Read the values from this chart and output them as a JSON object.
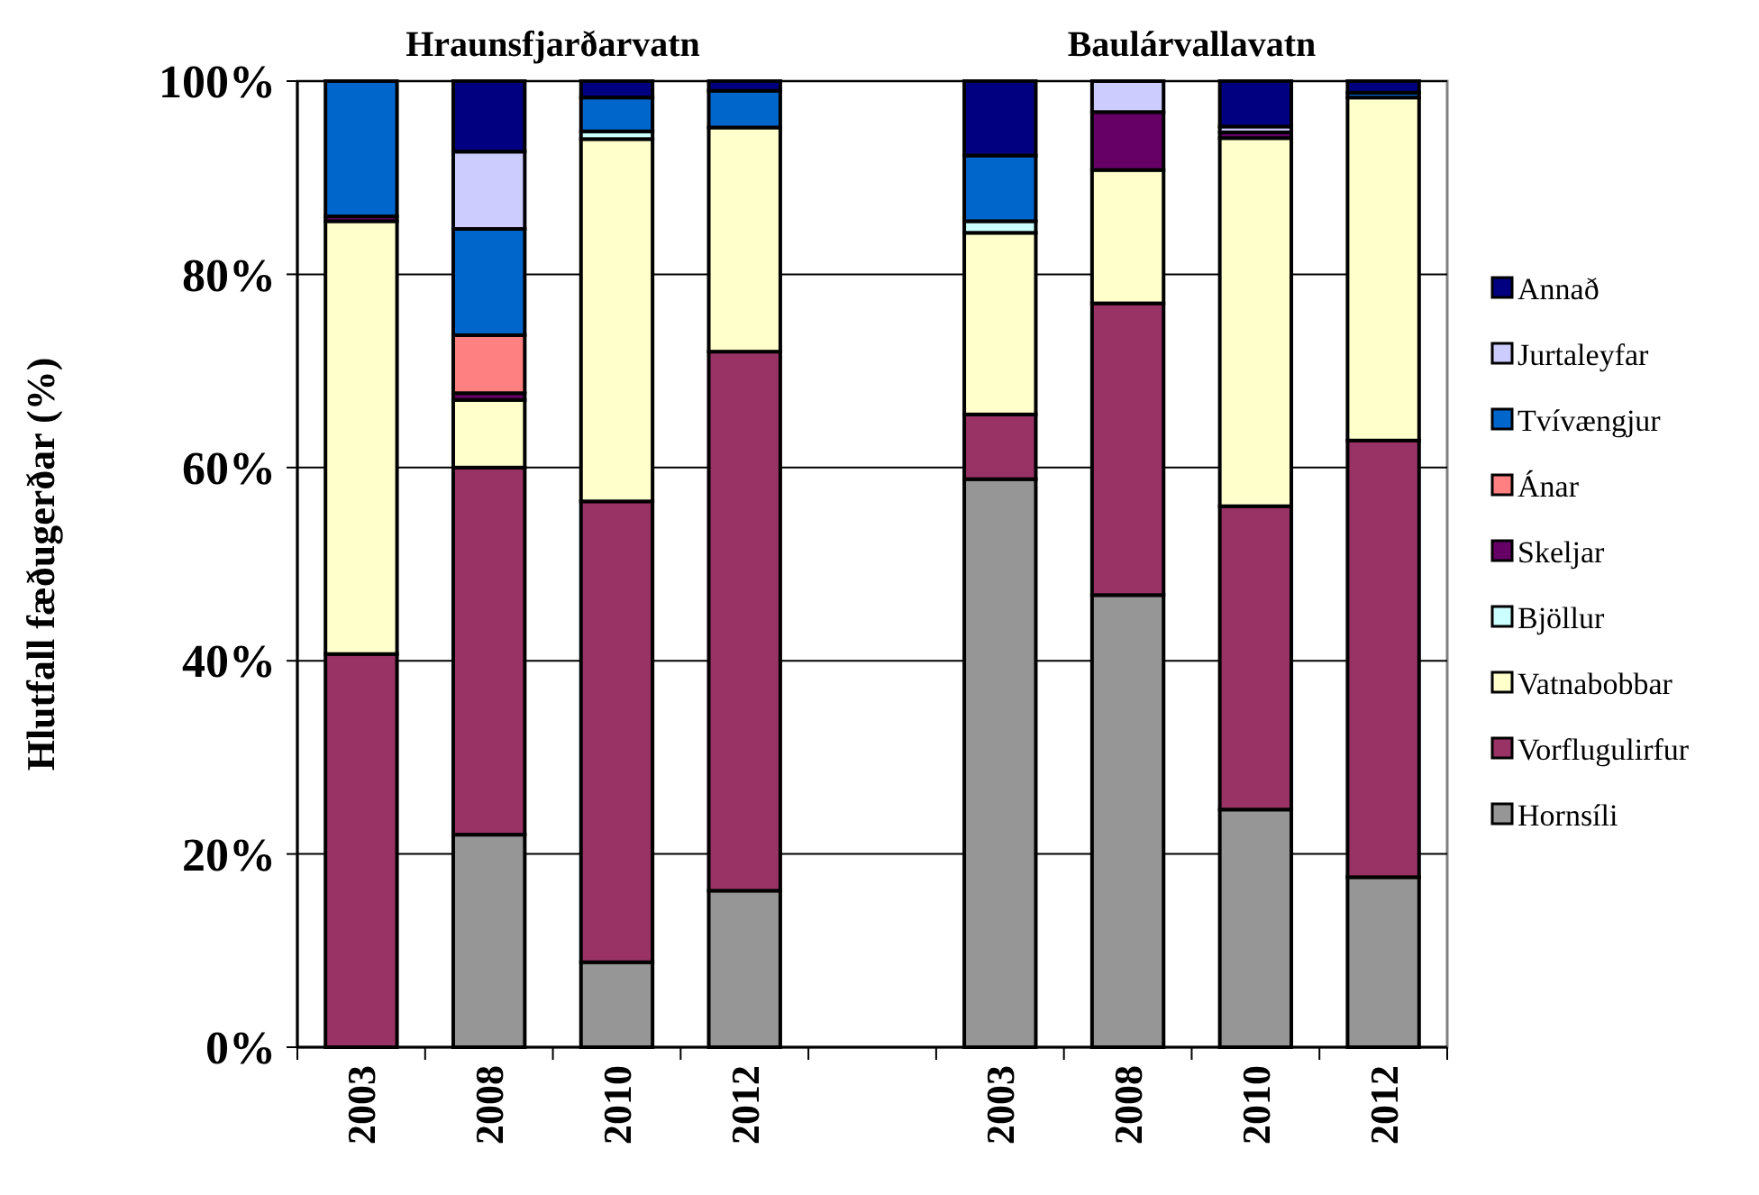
{
  "chart_data": {
    "type": "bar",
    "stacked": true,
    "ylabel": "Hlutfall fæðugerðar (%)",
    "annotations": [
      "Hraunsfjarðarvatn",
      "Baulárvallavatn"
    ],
    "categories": [
      "2003",
      "2008",
      "2010",
      "2012",
      null,
      "2003",
      "2008",
      "2010",
      "2012"
    ],
    "ylim": [
      0,
      100
    ],
    "yticks": [
      {
        "value": 0,
        "label": "0%"
      },
      {
        "value": 20,
        "label": "20%"
      },
      {
        "value": 40,
        "label": "40%"
      },
      {
        "value": 60,
        "label": "60%"
      },
      {
        "value": 80,
        "label": "80%"
      },
      {
        "value": 100,
        "label": "100%"
      }
    ],
    "grid": "y",
    "legend": "right",
    "series": [
      {
        "name": "Hornsíli",
        "color": "#969696",
        "values": [
          0,
          22,
          8.8,
          16.2,
          null,
          58.8,
          46.8,
          24.6,
          17.6
        ]
      },
      {
        "name": "Vorflugulirfur",
        "color": "#993366",
        "values": [
          40.7,
          38,
          47.7,
          55.8,
          null,
          6.7,
          30.2,
          31.4,
          45.2
        ]
      },
      {
        "name": "Vatnabobbar",
        "color": "#ffffcc",
        "values": [
          44.8,
          7,
          37.5,
          23.2,
          null,
          18.8,
          13.8,
          38.1,
          35.5
        ]
      },
      {
        "name": "Bjöllur",
        "color": "#ccffff",
        "values": [
          0,
          0,
          0.8,
          0,
          null,
          1.2,
          0,
          0,
          0
        ]
      },
      {
        "name": "Skeljar",
        "color": "#660066",
        "values": [
          0.5,
          0.7,
          0,
          0,
          null,
          0,
          6,
          0.6,
          0
        ]
      },
      {
        "name": "Ánar",
        "color": "#ff8080",
        "values": [
          0,
          6,
          0,
          0,
          null,
          0,
          0,
          0,
          0
        ]
      },
      {
        "name": "Tvívængjur",
        "color": "#0066cc",
        "values": [
          14,
          11,
          3.5,
          3.8,
          null,
          6.8,
          0,
          0,
          0.5
        ]
      },
      {
        "name": "Jurtaleyfar",
        "color": "#ccccff",
        "values": [
          0,
          8,
          0,
          0,
          null,
          0,
          3.2,
          0.6,
          0
        ]
      },
      {
        "name": "Annað",
        "color": "#000080",
        "values": [
          0,
          7.3,
          1.7,
          1,
          null,
          7.7,
          0,
          4.7,
          1.2
        ]
      }
    ]
  }
}
